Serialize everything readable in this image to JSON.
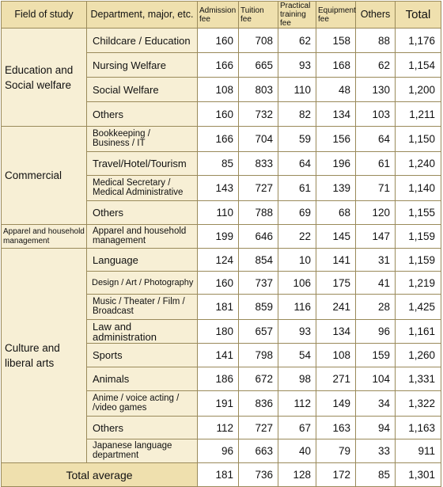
{
  "header": {
    "field": "Field of study",
    "dept": "Department, major, etc.",
    "admission": [
      "Admission",
      "fee"
    ],
    "tuition": [
      "Tuition",
      "fee"
    ],
    "practical": [
      "Practical",
      "training fee"
    ],
    "equipment": [
      "Equipment",
      "fee"
    ],
    "others": "Others",
    "total": "Total"
  },
  "groups": [
    {
      "field": [
        "Education and",
        "Social welfare"
      ],
      "rows": [
        {
          "dept": [
            "Childcare /  Education"
          ],
          "admission": "160",
          "tuition": "708",
          "practical": "62",
          "equipment": "158",
          "others": "88",
          "total": "1,176"
        },
        {
          "dept": [
            "Nursing Welfare"
          ],
          "admission": "166",
          "tuition": "665",
          "practical": "93",
          "equipment": "168",
          "others": "62",
          "total": "1,154"
        },
        {
          "dept": [
            "Social Welfare"
          ],
          "admission": "108",
          "tuition": "803",
          "practical": "110",
          "equipment": "48",
          "others": "130",
          "total": "1,200"
        },
        {
          "dept": [
            "Others"
          ],
          "admission": "160",
          "tuition": "732",
          "practical": "82",
          "equipment": "134",
          "others": "103",
          "total": "1,211"
        }
      ]
    },
    {
      "field": [
        "Commercial"
      ],
      "rows": [
        {
          "dept": [
            "Bookkeeping /",
            "Business / IT"
          ],
          "admission": "166",
          "tuition": "704",
          "practical": "59",
          "equipment": "156",
          "others": "64",
          "total": "1,150"
        },
        {
          "dept": [
            "Travel/Hotel/Tourism"
          ],
          "admission": "85",
          "tuition": "833",
          "practical": "64",
          "equipment": "196",
          "others": "61",
          "total": "1,240"
        },
        {
          "dept": [
            "Medical Secretary /",
            "Medical Administrative"
          ],
          "admission": "143",
          "tuition": "727",
          "practical": "61",
          "equipment": "139",
          "others": "71",
          "total": "1,140"
        },
        {
          "dept": [
            "Others"
          ],
          "admission": "110",
          "tuition": "788",
          "practical": "69",
          "equipment": "68",
          "others": "120",
          "total": "1,155"
        }
      ]
    },
    {
      "field": [
        "Apparel and household",
        "management"
      ],
      "rows": [
        {
          "dept": [
            "Apparel and household",
            "management"
          ],
          "admission": "199",
          "tuition": "646",
          "practical": "22",
          "equipment": "145",
          "others": "147",
          "total": "1,159"
        }
      ]
    },
    {
      "field": [
        "Culture and",
        "liberal arts"
      ],
      "rows": [
        {
          "dept": [
            "Language"
          ],
          "admission": "124",
          "tuition": "854",
          "practical": "10",
          "equipment": "141",
          "others": "31",
          "total": "1,159"
        },
        {
          "dept": [
            "Design / Art / Photography"
          ],
          "admission": "160",
          "tuition": "737",
          "practical": "106",
          "equipment": "175",
          "others": "41",
          "total": "1,219"
        },
        {
          "dept": [
            "Music / Theater / Film /",
            "Broadcast"
          ],
          "admission": "181",
          "tuition": "859",
          "practical": "116",
          "equipment": "241",
          "others": "28",
          "total": "1,425"
        },
        {
          "dept": [
            "Law and administration"
          ],
          "admission": "180",
          "tuition": "657",
          "practical": "93",
          "equipment": "134",
          "others": "96",
          "total": "1,161"
        },
        {
          "dept": [
            "Sports"
          ],
          "admission": "141",
          "tuition": "798",
          "practical": "54",
          "equipment": "108",
          "others": "159",
          "total": "1,260"
        },
        {
          "dept": [
            "Animals"
          ],
          "admission": "186",
          "tuition": "672",
          "practical": "98",
          "equipment": "271",
          "others": "104",
          "total": "1,331"
        },
        {
          "dept": [
            "Anime / voice acting /",
            "/video games"
          ],
          "admission": "191",
          "tuition": "836",
          "practical": "112",
          "equipment": "149",
          "others": "34",
          "total": "1,322"
        },
        {
          "dept": [
            "Others"
          ],
          "admission": "112",
          "tuition": "727",
          "practical": "67",
          "equipment": "163",
          "others": "94",
          "total": "1,163"
        },
        {
          "dept": [
            "Japanese language",
            "department"
          ],
          "admission": "96",
          "tuition": "663",
          "practical": "40",
          "equipment": "79",
          "others": "33",
          "total": "911"
        }
      ]
    }
  ],
  "average": {
    "label": "Total average",
    "admission": "181",
    "tuition": "736",
    "practical": "128",
    "equipment": "172",
    "others": "85",
    "total": "1,301"
  }
}
